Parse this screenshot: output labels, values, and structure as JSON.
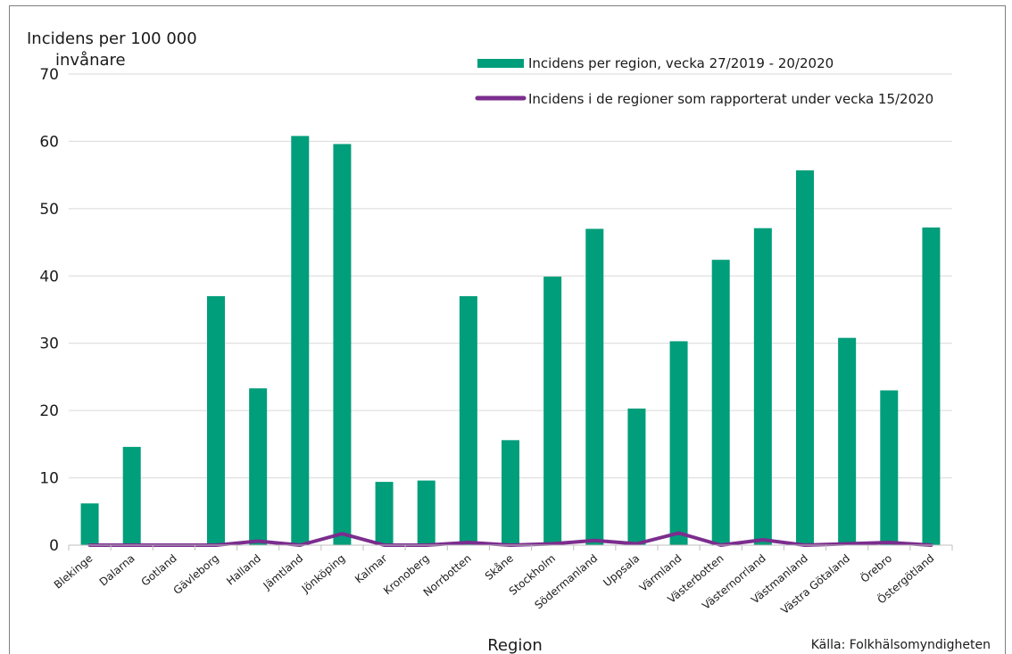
{
  "chart_data": {
    "type": "bar",
    "ylabel_line1": "Incidens per 100 000",
    "ylabel_line2": "invånare",
    "xlabel": "Region",
    "source": "Källa: Folkhälsomyndigheten",
    "ylim": [
      0,
      70
    ],
    "yticks": [
      0,
      10,
      20,
      30,
      40,
      50,
      60,
      70
    ],
    "grid": true,
    "legend_position": "top-right",
    "categories": [
      "Blekinge",
      "Dalarna",
      "Gotland",
      "Gävleborg",
      "Halland",
      "Jämtland",
      "Jönköping",
      "Kalmar",
      "Kronoberg",
      "Norrbotten",
      "Skåne",
      "Stockholm",
      "Södermanland",
      "Uppsala",
      "Värmland",
      "Västerbotten",
      "Västernorrland",
      "Västmanland",
      "Västra Götaland",
      "Örebro",
      "Östergötland"
    ],
    "series": [
      {
        "name": "Incidens per region, vecka 27/2019 - 20/2020",
        "type": "bar",
        "color": "#009e7a",
        "values": [
          6.2,
          14.6,
          0,
          37.0,
          23.3,
          60.8,
          59.6,
          9.4,
          9.6,
          37.0,
          15.6,
          39.9,
          47.0,
          20.3,
          30.3,
          42.4,
          47.1,
          55.7,
          30.8,
          23.0,
          47.2
        ]
      },
      {
        "name": "Incidens i de regioner som rapporterat under vecka 15/2020",
        "type": "line",
        "color": "#7b2d8e",
        "values": [
          0,
          0,
          0,
          0,
          0.6,
          0,
          1.7,
          0,
          0,
          0.4,
          0,
          0.2,
          0.7,
          0.2,
          1.8,
          0,
          0.8,
          0,
          0.2,
          0.4,
          0
        ]
      }
    ]
  }
}
